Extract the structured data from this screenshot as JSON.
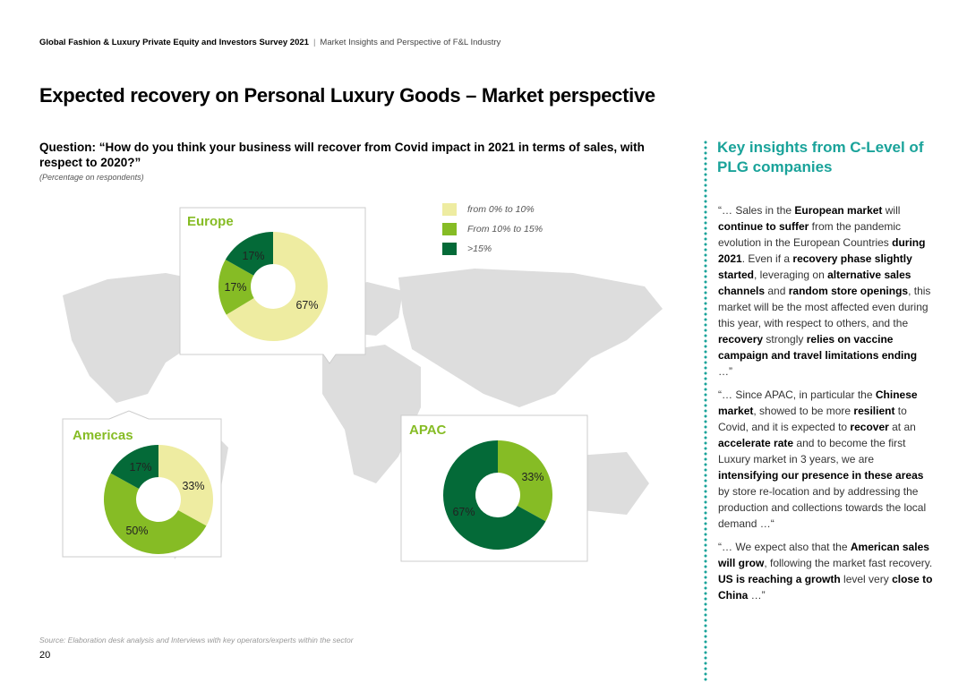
{
  "header": {
    "report": "Global Fashion & Luxury Private Equity and Investors Survey 2021",
    "separator": "|",
    "section": "Market Insights and Perspective of F&L Industry"
  },
  "page_title": "Expected recovery on Personal Luxury Goods – Market perspective",
  "question": "Question: “How do you think your business will recover from Covid impact in 2021 in terms of sales, with respect to 2020?”",
  "percentage_note": "(Percentage on respondents)",
  "colors": {
    "low": "#eeeca1",
    "mid": "#86bc25",
    "high": "#046a38",
    "accent": "#1aa39a",
    "map": "#dddddd"
  },
  "chart_data": [
    {
      "type": "pie",
      "title": "Europe",
      "categories": [
        "from 0% to 10%",
        "From 10% to 15%",
        ">15%"
      ],
      "values": [
        67,
        17,
        17
      ],
      "labels": [
        "67%",
        "17%",
        "17%"
      ]
    },
    {
      "type": "pie",
      "title": "Americas",
      "categories": [
        "from 0% to 10%",
        "From 10% to 15%",
        ">15%"
      ],
      "values": [
        33,
        50,
        17
      ],
      "labels": [
        "33%",
        "50%",
        "17%"
      ]
    },
    {
      "type": "pie",
      "title": "APAC",
      "categories": [
        "From 10% to 15%",
        ">15%"
      ],
      "values": [
        33,
        67
      ],
      "labels": [
        "33%",
        "67%"
      ]
    }
  ],
  "legend": [
    {
      "label": "from 0% to 10%",
      "color": "#eeeca1"
    },
    {
      "label": "From 10% to 15%",
      "color": "#86bc25"
    },
    {
      "label": ">15%",
      "color": "#046a38"
    }
  ],
  "insights": {
    "title": "Key insights from C-Level of PLG companies",
    "paragraphs": [
      [
        {
          "t": "“… Sales in the "
        },
        {
          "b": "European market"
        },
        {
          "t": " will "
        },
        {
          "b": "continue to suffer"
        },
        {
          "t": " from the pandemic evolution in the European Countries "
        },
        {
          "b": "during 2021"
        },
        {
          "t": ". Even if a "
        },
        {
          "b": "recovery phase slightly started"
        },
        {
          "t": ", leveraging on "
        },
        {
          "b": "alternative sales channels"
        },
        {
          "t": " and "
        },
        {
          "b": "random store openings"
        },
        {
          "t": ", this market will be the most affected even during this year, with respect to others, and the "
        },
        {
          "b": "recovery"
        },
        {
          "t": " strongly "
        },
        {
          "b": "relies on vaccine campaign and travel limitations ending"
        },
        {
          "t": " …”"
        }
      ],
      [
        {
          "t": "“… Since APAC, in particular the "
        },
        {
          "b": "Chinese market"
        },
        {
          "t": ", showed to be more "
        },
        {
          "b": "resilient"
        },
        {
          "t": " to Covid, and it is expected to "
        },
        {
          "b": "recover"
        },
        {
          "t": " at an "
        },
        {
          "b": "accelerate rate"
        },
        {
          "t": " and to become the first Luxury market in 3 years, we are "
        },
        {
          "b": "intensifying our presence in these areas"
        },
        {
          "t": " by store re-location and by addressing the production and collections towards the local demand …“"
        }
      ],
      [
        {
          "t": "“… We expect also that the "
        },
        {
          "b": "American sales will grow"
        },
        {
          "t": ", following the market fast recovery. "
        },
        {
          "b": "US is reaching a growth"
        },
        {
          "t": " level very "
        },
        {
          "b": "close to China"
        },
        {
          "t": "  …”"
        }
      ]
    ]
  },
  "source": "Source: Elaboration desk analysis and  Interviews with key operators/experts within the sector",
  "page_number": "20"
}
